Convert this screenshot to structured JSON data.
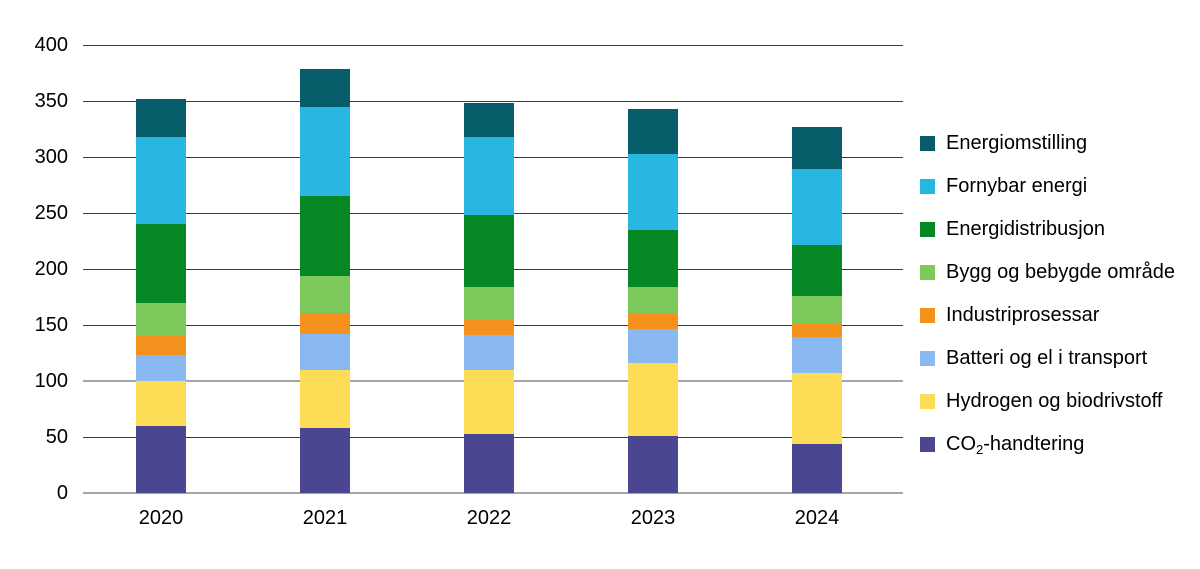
{
  "chart_data": {
    "type": "bar",
    "stacked": true,
    "title": "",
    "xlabel": "",
    "ylabel": "",
    "categories": [
      "2020",
      "2021",
      "2022",
      "2023",
      "2024"
    ],
    "series": [
      {
        "name": "CO₂-handtering",
        "color": "#4a4691",
        "values": [
          60,
          58,
          53,
          51,
          44
        ]
      },
      {
        "name": "Hydrogen og biodrivstoff",
        "color": "#fedd56",
        "values": [
          40,
          52,
          57,
          65,
          63
        ]
      },
      {
        "name": "Batteri og el i transport",
        "color": "#8ab9f1",
        "values": [
          23,
          32,
          31,
          30,
          32
        ]
      },
      {
        "name": "Industriprosessar",
        "color": "#f5921e",
        "values": [
          18,
          19,
          14,
          14,
          12
        ]
      },
      {
        "name": "Bygg og bebygde område",
        "color": "#7ec95c",
        "values": [
          29,
          33,
          29,
          24,
          25
        ]
      },
      {
        "name": "Energidistribusjon",
        "color": "#068726",
        "values": [
          70,
          71,
          64,
          51,
          45
        ]
      },
      {
        "name": "Fornybar energi",
        "color": "#27b7e1",
        "values": [
          78,
          80,
          70,
          68,
          68
        ]
      },
      {
        "name": "Energiomstilling",
        "color": "#065d69",
        "values": [
          34,
          34,
          30,
          40,
          38
        ]
      }
    ],
    "totals": [
      352,
      379,
      348,
      343,
      327
    ],
    "ylim": [
      0,
      400
    ],
    "yticks": [
      0,
      50,
      100,
      150,
      200,
      250,
      300,
      350,
      400
    ],
    "grid": true,
    "legend_position": "right",
    "legend_order_top_to_bottom": [
      "Energiomstilling",
      "Fornybar energi",
      "Energidistribusjon",
      "Bygg og bebygde område",
      "Industriprosessar",
      "Batteri og el i transport",
      "Hydrogen og biodrivstoff",
      "CO₂-handtering"
    ]
  }
}
